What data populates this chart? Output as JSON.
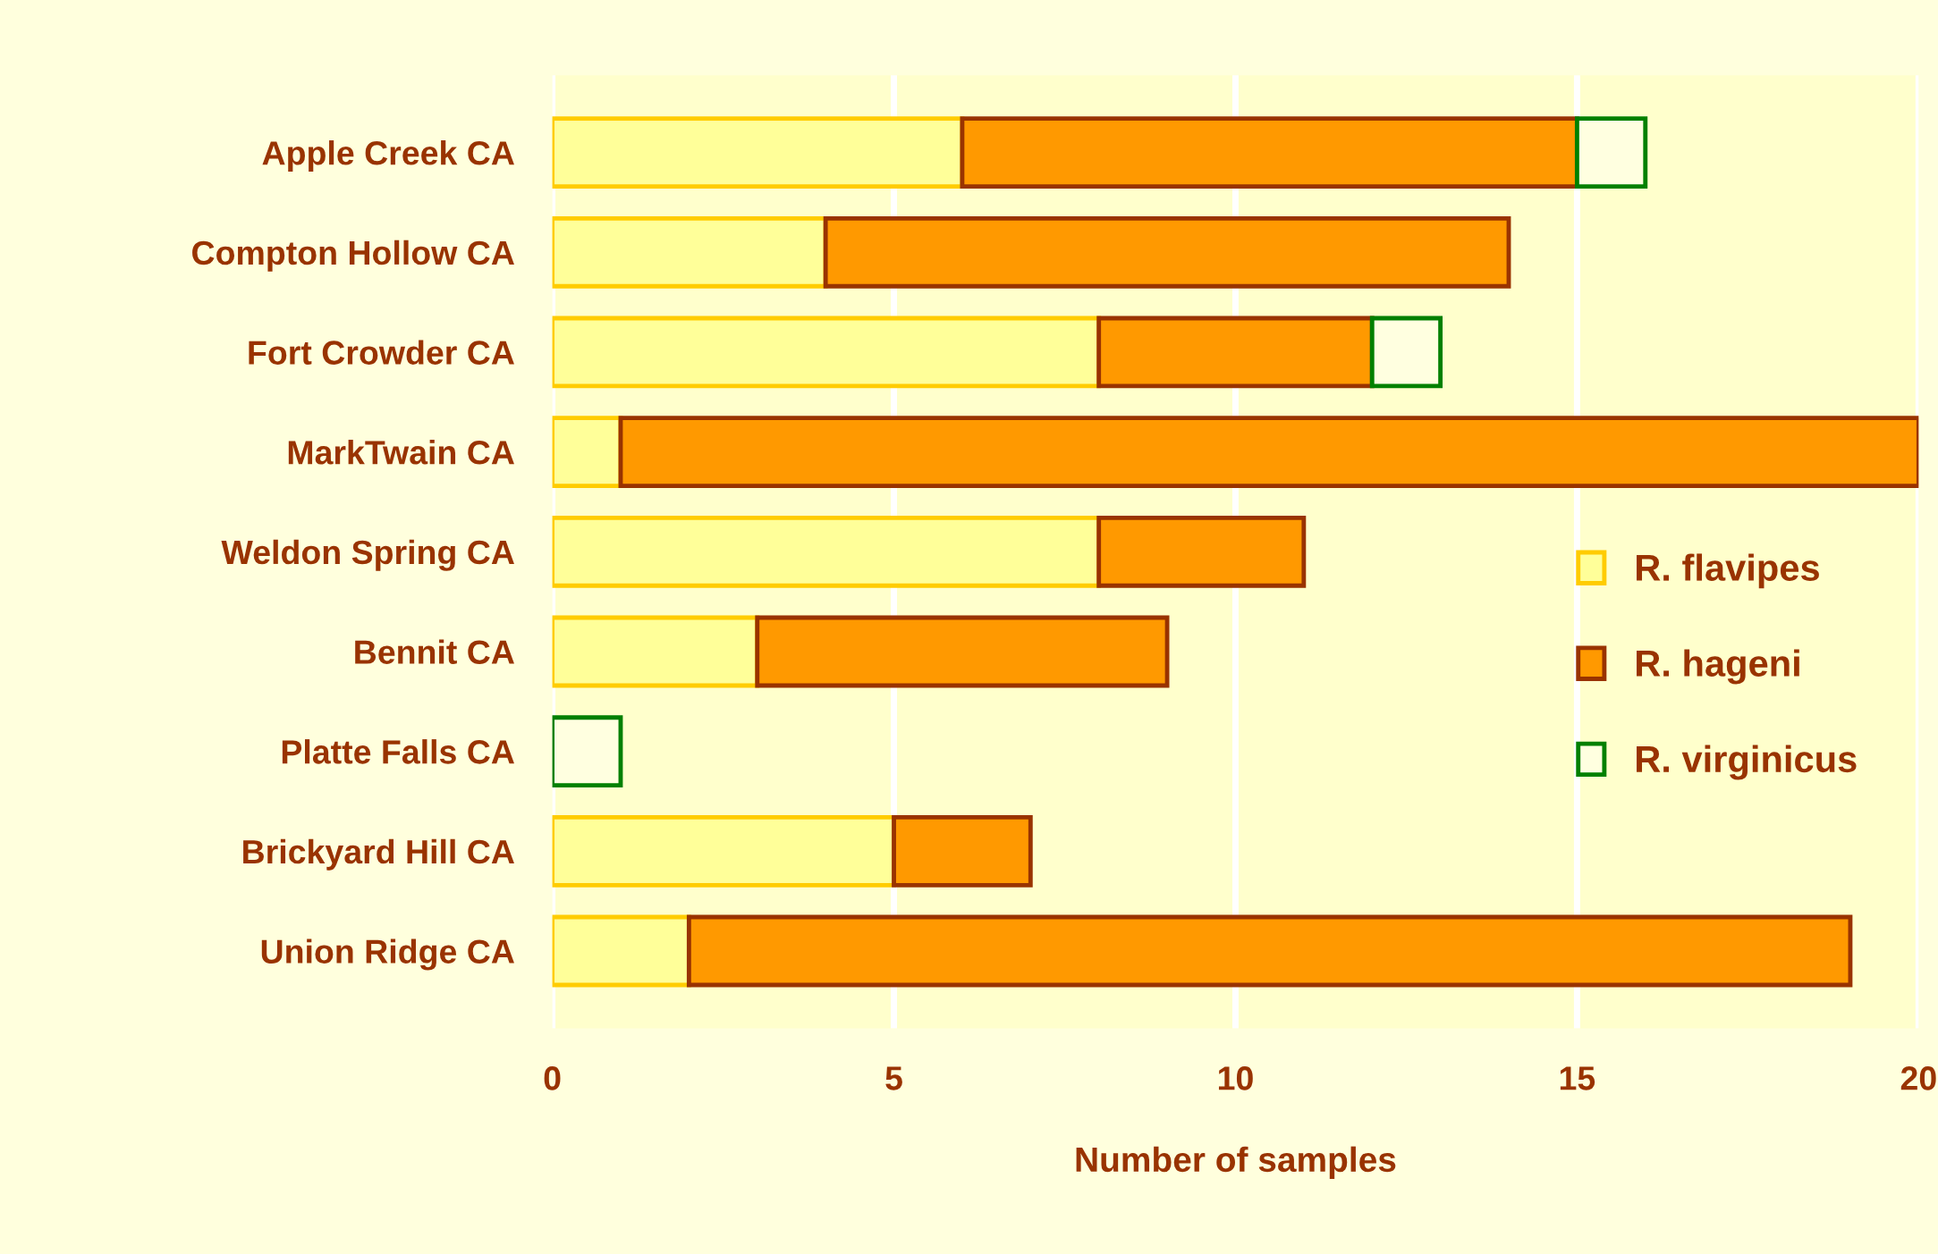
{
  "chart_data": {
    "type": "bar",
    "orientation": "horizontal",
    "stacked": true,
    "categories": [
      "Apple Creek CA",
      "Compton Hollow CA",
      "Fort Crowder CA",
      "MarkTwain CA",
      "Weldon Spring CA",
      "Bennit CA",
      "Platte Falls CA",
      "Brickyard Hill CA",
      "Union Ridge CA"
    ],
    "series": [
      {
        "name": "R. flavipes",
        "color": "#ffcc00",
        "values": [
          6,
          4,
          8,
          1,
          8,
          3,
          0,
          5,
          2
        ]
      },
      {
        "name": "R. hageni",
        "color": "#993300",
        "values": [
          9,
          10,
          4,
          19,
          3,
          6,
          0,
          2,
          17
        ]
      },
      {
        "name": "R. virginicus",
        "color": "#008000",
        "values": [
          1,
          0,
          1,
          0,
          0,
          0,
          1,
          0,
          0
        ]
      }
    ],
    "xlabel": "Number of samples",
    "xlim": [
      0,
      20
    ],
    "xticks": [
      0,
      5,
      10,
      15,
      20
    ],
    "grid": "x",
    "legend": "right"
  }
}
